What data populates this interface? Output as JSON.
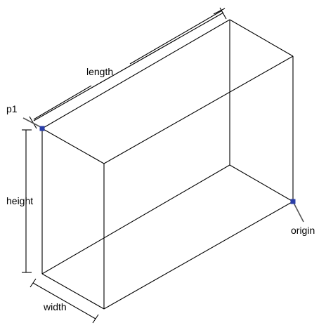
{
  "labels": {
    "length": "length",
    "height": "height",
    "width": "width",
    "p1": "p1",
    "origin": "origin"
  },
  "colors": {
    "background": "#ffffff",
    "edge": "#000000",
    "marker": "#2a3ea8",
    "leader": "#555555"
  }
}
